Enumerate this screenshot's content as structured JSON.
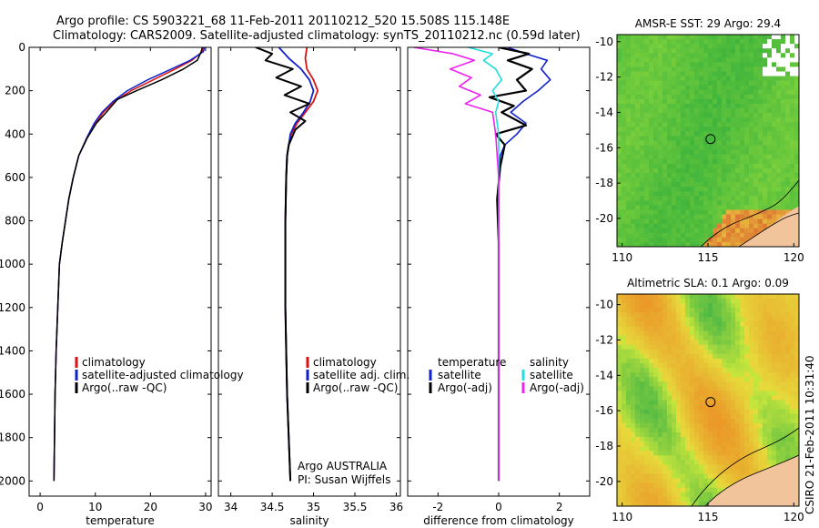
{
  "header": {
    "line1": "Argo profile: CS 5903221_68 11-Feb-2011 20110212_520 15.508S 115.148E",
    "line2": "Climatology: CARS2009. Satellite-adjusted climatology: synTS_20110212.nc (0.59d later)"
  },
  "colors": {
    "climatology": "#dd1111",
    "satellite": "#1122cc",
    "argo": "#000000",
    "satellite_sal_diff": "#22dddd",
    "argo_sal_diff": "#ee22ee"
  },
  "chart_data": [
    {
      "type": "line",
      "id": "temperature",
      "xlabel": "temperature",
      "ylabel": "",
      "xlim": [
        -2,
        31
      ],
      "ylim": [
        2070,
        0
      ],
      "xticks": [
        0,
        10,
        20,
        30
      ],
      "yticks": [
        0,
        200,
        400,
        600,
        800,
        1000,
        1200,
        1400,
        1600,
        1800,
        2000
      ],
      "legend": [
        "climatology",
        "satellite-adjusted climatology",
        "Argo(..raw -QC)"
      ],
      "series": [
        {
          "name": "climatology",
          "x": [
            29.5,
            29.4,
            27.5,
            24.5,
            20.5,
            16.5,
            13.5,
            11.5,
            10.0,
            8.5,
            7.0,
            6.0,
            5.2,
            4.6,
            4.0,
            3.5,
            3.2,
            2.9,
            2.7,
            2.6,
            2.5
          ],
          "y": [
            0,
            20,
            60,
            100,
            150,
            200,
            250,
            300,
            350,
            420,
            500,
            600,
            700,
            800,
            900,
            1000,
            1200,
            1400,
            1600,
            1800,
            2000
          ]
        },
        {
          "name": "satellite-adjusted climatology",
          "x": [
            29.8,
            29.6,
            27.2,
            23.8,
            19.5,
            15.8,
            13.2,
            11.2,
            9.8,
            8.4,
            7.0,
            6.0,
            5.2,
            4.6,
            4.0,
            3.5,
            3.2,
            2.9,
            2.7,
            2.6,
            2.5
          ],
          "y": [
            0,
            20,
            60,
            100,
            150,
            200,
            250,
            300,
            350,
            420,
            500,
            600,
            700,
            800,
            900,
            1000,
            1200,
            1400,
            1600,
            1800,
            2000
          ]
        },
        {
          "name": "Argo(..raw -QC)",
          "x": [
            29.4,
            29.2,
            28.5,
            26.0,
            22.0,
            17.5,
            14.0,
            12.0,
            10.2,
            8.5,
            7.0,
            6.0,
            5.2,
            4.6,
            4.0,
            3.5,
            3.2,
            2.9,
            2.7,
            2.6,
            2.5
          ],
          "y": [
            0,
            20,
            60,
            100,
            150,
            200,
            240,
            300,
            350,
            420,
            500,
            600,
            700,
            800,
            900,
            1000,
            1200,
            1400,
            1600,
            1800,
            2000
          ]
        }
      ]
    },
    {
      "type": "line",
      "id": "salinity",
      "xlabel": "salinity",
      "xlim": [
        33.85,
        36.05
      ],
      "ylim": [
        2070,
        0
      ],
      "xticks": [
        34,
        34.5,
        35,
        35.5,
        36
      ],
      "legend": [
        "climatology",
        "satellite adj. clim.",
        "Argo(..raw -QC)"
      ],
      "annotations": [
        "Argo AUSTRALIA",
        "PI: Susan Wijffels"
      ],
      "series": [
        {
          "name": "climatology",
          "x": [
            34.92,
            34.9,
            34.92,
            35.0,
            35.05,
            35.0,
            34.9,
            34.8,
            34.73,
            34.7,
            34.68,
            34.67,
            34.66,
            34.66,
            34.66,
            34.67,
            34.68,
            34.7,
            34.71,
            34.72
          ],
          "y": [
            0,
            50,
            100,
            150,
            200,
            250,
            300,
            350,
            400,
            450,
            500,
            600,
            800,
            1000,
            1200,
            1400,
            1600,
            1800,
            1900,
            2000
          ]
        },
        {
          "name": "satellite adj. clim.",
          "x": [
            34.58,
            34.7,
            34.85,
            34.95,
            35.0,
            34.96,
            34.88,
            34.78,
            34.72,
            34.7,
            34.68,
            34.67,
            34.66,
            34.66,
            34.66,
            34.67,
            34.68,
            34.7,
            34.71,
            34.72
          ],
          "y": [
            0,
            50,
            100,
            150,
            200,
            250,
            300,
            350,
            400,
            450,
            500,
            600,
            800,
            1000,
            1200,
            1400,
            1600,
            1800,
            1900,
            2000
          ]
        },
        {
          "name": "Argo(..raw -QC)",
          "x": [
            34.3,
            34.5,
            34.42,
            34.75,
            34.55,
            34.85,
            34.65,
            34.95,
            34.72,
            34.9,
            34.78,
            34.7,
            34.68,
            34.67,
            34.66,
            34.66,
            34.66,
            34.67,
            34.68,
            34.7,
            34.71,
            34.72
          ],
          "y": [
            0,
            30,
            60,
            100,
            140,
            180,
            220,
            260,
            300,
            340,
            380,
            450,
            500,
            600,
            800,
            1000,
            1200,
            1400,
            1600,
            1800,
            1900,
            2000
          ]
        }
      ]
    },
    {
      "type": "line",
      "id": "difference",
      "xlabel": "difference from climatology",
      "xlim": [
        -3.0,
        3.0
      ],
      "ylim": [
        2070,
        0
      ],
      "xticks": [
        -2,
        0,
        2
      ],
      "legend_left_title": "temperature",
      "legend_right_title": "salinity",
      "legend": [
        "satellite",
        "Argo(-adj)",
        "satellite",
        "Argo(-adj)"
      ],
      "series": [
        {
          "name": "temperature satellite",
          "x": [
            0.3,
            0.9,
            1.6,
            1.4,
            1.7,
            1.3,
            0.8,
            0.4,
            0.9,
            0.6,
            0.2,
            0.05,
            0.0,
            0.0,
            0.0,
            0.0,
            0.0,
            0.0,
            0.0
          ],
          "y": [
            0,
            30,
            60,
            100,
            150,
            200,
            250,
            300,
            350,
            400,
            450,
            500,
            600,
            800,
            1000,
            1200,
            1400,
            1800,
            2000
          ]
        },
        {
          "name": "temperature Argo(-adj)",
          "x": [
            0.0,
            1.0,
            0.3,
            1.1,
            0.6,
            0.9,
            -0.3,
            0.5,
            0.1,
            0.9,
            -0.1,
            0.2,
            0.05,
            -0.05,
            0.0,
            0.0,
            0.0,
            0.0,
            0.0
          ],
          "y": [
            0,
            30,
            60,
            100,
            150,
            200,
            230,
            270,
            300,
            360,
            400,
            450,
            550,
            700,
            900,
            1200,
            1500,
            1800,
            2000
          ]
        },
        {
          "name": "salinity satellite",
          "x": [
            -1.0,
            -0.2,
            -0.5,
            -0.1,
            0.1,
            -0.2,
            0.0,
            -0.1,
            0.0,
            0.0,
            0.0,
            0.0,
            0.0
          ],
          "y": [
            0,
            30,
            60,
            100,
            150,
            200,
            250,
            300,
            400,
            600,
            1000,
            1500,
            2000
          ]
        },
        {
          "name": "salinity Argo(-adj)",
          "x": [
            -2.8,
            -1.5,
            -0.8,
            -1.6,
            -0.9,
            -1.3,
            -0.6,
            -1.1,
            -0.2,
            -0.1,
            0.0,
            0.0,
            0.0
          ],
          "y": [
            0,
            30,
            60,
            100,
            140,
            180,
            220,
            260,
            300,
            400,
            600,
            1000,
            2000
          ]
        }
      ]
    },
    {
      "type": "heatmap",
      "id": "sst_map",
      "title": "AMSR-E SST: 29 Argo: 29.4",
      "xlim": [
        109.7,
        120.3
      ],
      "ylim": [
        -21.6,
        -9.6
      ],
      "xticks": [
        110,
        115,
        120
      ],
      "yticks": [
        -10,
        -12,
        -14,
        -16,
        -18,
        -20
      ],
      "marker": {
        "lon": 115.148,
        "lat": -15.508
      }
    },
    {
      "type": "heatmap",
      "id": "sla_map",
      "title": "Altimetric SLA: 0.1 Argo: 0.09",
      "xlim": [
        109.7,
        120.3
      ],
      "ylim": [
        -21.4,
        -9.4
      ],
      "xticks": [
        110,
        115,
        120
      ],
      "yticks": [
        -10,
        -12,
        -14,
        -16,
        -18,
        -20
      ],
      "marker": {
        "lon": 115.148,
        "lat": -15.508
      }
    }
  ],
  "side_label": "CSIRO 21-Feb-2011 10:31:40"
}
